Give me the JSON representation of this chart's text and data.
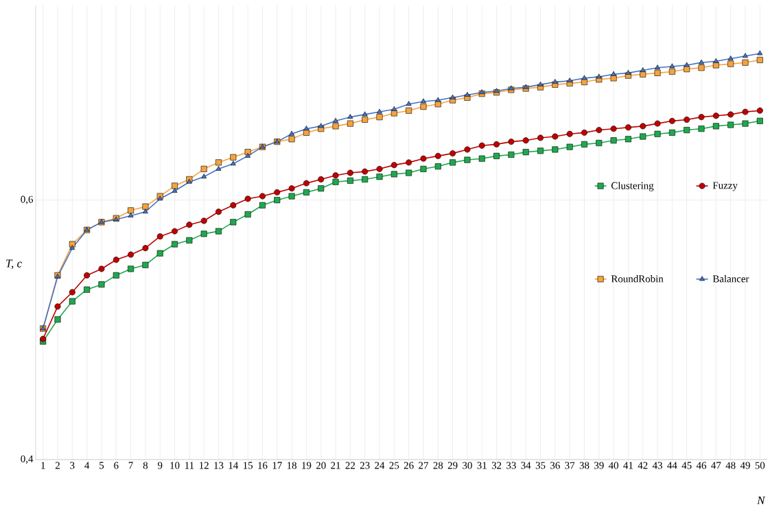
{
  "chart_data": {
    "type": "line",
    "xlabel": "N",
    "ylabel": "T, c",
    "categories": [
      "1",
      "2",
      "3",
      "4",
      "5",
      "6",
      "7",
      "8",
      "9",
      "10",
      "11",
      "12",
      "13",
      "14",
      "15",
      "16",
      "17",
      "18",
      "19",
      "20",
      "21",
      "22",
      "23",
      "24",
      "25",
      "26",
      "27",
      "28",
      "29",
      "30",
      "31",
      "32",
      "33",
      "34",
      "35",
      "36",
      "37",
      "38",
      "39",
      "40",
      "41",
      "42",
      "43",
      "44",
      "45",
      "46",
      "47",
      "48",
      "49",
      "50"
    ],
    "ylim": [
      0.4,
      0.75
    ],
    "yticks": [
      {
        "value": 0.4,
        "label": "0,4"
      },
      {
        "value": 0.6,
        "label": "0,6"
      }
    ],
    "grid": true,
    "legend": "right",
    "series": [
      {
        "name": "Clustering",
        "color": "#1fa84f",
        "marker": "square",
        "values": [
          0.491,
          0.508,
          0.522,
          0.531,
          0.535,
          0.542,
          0.547,
          0.55,
          0.559,
          0.566,
          0.569,
          0.574,
          0.576,
          0.583,
          0.589,
          0.596,
          0.6,
          0.603,
          0.606,
          0.609,
          0.614,
          0.615,
          0.616,
          0.618,
          0.62,
          0.621,
          0.624,
          0.626,
          0.629,
          0.631,
          0.632,
          0.634,
          0.635,
          0.637,
          0.638,
          0.639,
          0.641,
          0.643,
          0.644,
          0.646,
          0.647,
          0.649,
          0.651,
          0.652,
          0.654,
          0.655,
          0.657,
          0.658,
          0.659,
          0.661
        ]
      },
      {
        "name": "Fuzzy",
        "color": "#c00000",
        "marker": "circle",
        "values": [
          0.493,
          0.518,
          0.529,
          0.542,
          0.547,
          0.554,
          0.558,
          0.563,
          0.572,
          0.576,
          0.581,
          0.584,
          0.591,
          0.596,
          0.601,
          0.603,
          0.606,
          0.609,
          0.613,
          0.616,
          0.619,
          0.621,
          0.622,
          0.624,
          0.627,
          0.629,
          0.632,
          0.634,
          0.636,
          0.639,
          0.642,
          0.643,
          0.645,
          0.646,
          0.648,
          0.649,
          0.651,
          0.652,
          0.654,
          0.655,
          0.656,
          0.657,
          0.659,
          0.661,
          0.662,
          0.664,
          0.665,
          0.666,
          0.668,
          0.669
        ]
      },
      {
        "name": "RoundRobin",
        "color": "#f4a340",
        "marker": "square",
        "values": [
          0.501,
          0.542,
          0.566,
          0.577,
          0.583,
          0.586,
          0.592,
          0.595,
          0.603,
          0.611,
          0.616,
          0.624,
          0.629,
          0.633,
          0.637,
          0.641,
          0.645,
          0.647,
          0.652,
          0.655,
          0.657,
          0.659,
          0.662,
          0.664,
          0.667,
          0.669,
          0.672,
          0.674,
          0.677,
          0.679,
          0.682,
          0.683,
          0.685,
          0.686,
          0.687,
          0.689,
          0.69,
          0.691,
          0.693,
          0.694,
          0.696,
          0.697,
          0.698,
          0.699,
          0.701,
          0.702,
          0.704,
          0.705,
          0.706,
          0.708
        ]
      },
      {
        "name": "Balancer",
        "color": "#4472c4",
        "marker": "triangle",
        "values": [
          0.501,
          0.541,
          0.563,
          0.577,
          0.583,
          0.585,
          0.588,
          0.591,
          0.601,
          0.607,
          0.614,
          0.618,
          0.624,
          0.628,
          0.634,
          0.641,
          0.645,
          0.651,
          0.655,
          0.657,
          0.661,
          0.664,
          0.666,
          0.668,
          0.67,
          0.674,
          0.676,
          0.677,
          0.679,
          0.681,
          0.683,
          0.684,
          0.686,
          0.687,
          0.689,
          0.691,
          0.692,
          0.694,
          0.695,
          0.697,
          0.698,
          0.7,
          0.702,
          0.703,
          0.704,
          0.706,
          0.707,
          0.709,
          0.711,
          0.713
        ]
      }
    ]
  }
}
